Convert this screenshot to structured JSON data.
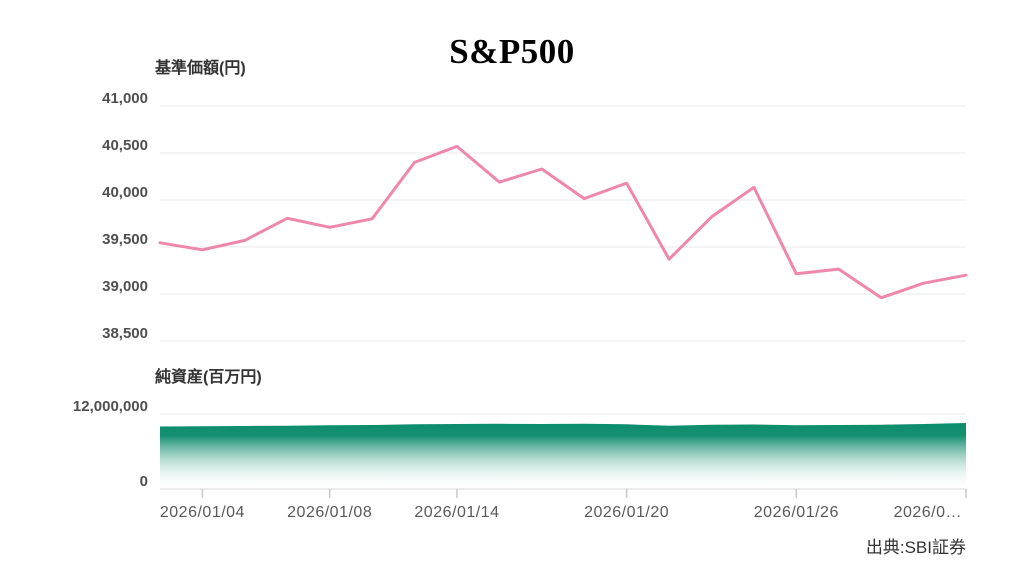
{
  "source": "出典:SBI証券",
  "colors": {
    "line": "#ef87ac",
    "area_top": "#0d8d6c",
    "grid": "#e8e8e8",
    "baseline": "#d9d9d9",
    "tick_mark": "#c9c9c9",
    "axis_value_text": "#4f4f4f",
    "date_text": "#595959",
    "label_text": "#333333"
  },
  "chart_data": [
    {
      "type": "line",
      "title": "S&P500",
      "ylabel": "基準価額(円)",
      "series_name": "基準価額",
      "ylim": [
        38500,
        41000
      ],
      "y_ticks": [
        41000,
        40500,
        40000,
        39500,
        39000,
        38500
      ],
      "grid": true,
      "values": [
        39545,
        39470,
        39570,
        39805,
        39710,
        39800,
        40400,
        40570,
        40190,
        40330,
        40015,
        40180,
        39370,
        39820,
        40135,
        39215,
        39265,
        38960,
        39115,
        39200
      ]
    },
    {
      "type": "area",
      "ylabel": "純資産(百万円)",
      "series_name": "純資産",
      "ylim": [
        0,
        12000000
      ],
      "y_ticks": [
        12000000,
        0
      ],
      "grid": true,
      "values": [
        9840000,
        9870000,
        9920000,
        9970000,
        10030000,
        10080000,
        10190000,
        10240000,
        10270000,
        10240000,
        10290000,
        10190000,
        9970000,
        10130000,
        10160000,
        10030000,
        10080000,
        10130000,
        10240000,
        10400000
      ],
      "x_tick_labels": [
        {
          "label": "2026/01/04",
          "point": 1
        },
        {
          "label": "2026/01/08",
          "point": 4
        },
        {
          "label": "2026/01/14",
          "point": 7
        },
        {
          "label": "2026/01/20",
          "point": 11
        },
        {
          "label": "2026/01/26",
          "point": 15
        },
        {
          "label": "2026/0…",
          "point": 19,
          "truncated": true
        }
      ]
    }
  ]
}
